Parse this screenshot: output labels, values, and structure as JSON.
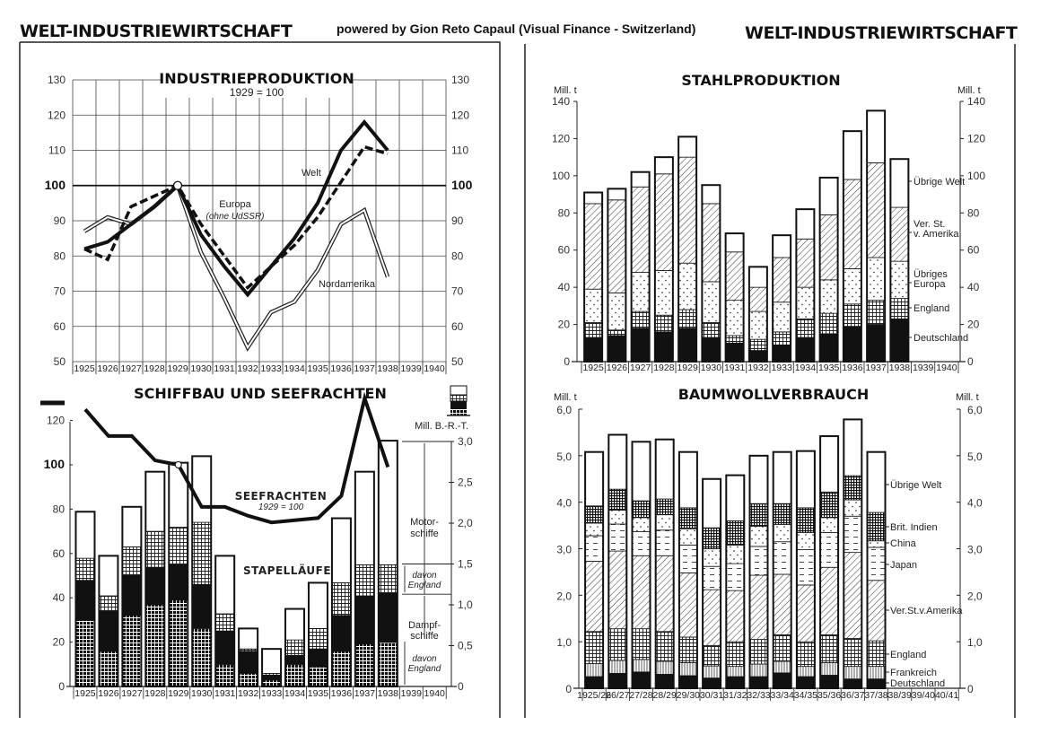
{
  "header": {
    "left_title": "WELT-INDUSTRIEWIRTSCHAFT",
    "credit": "powered by Gion Reto Capaul (Visual Finance - Switzerland)",
    "right_title": "WELT-INDUSTRIEWIRTSCHAFT"
  },
  "chart_data": [
    {
      "type": "line",
      "title": "INDUSTRIEPRODUKTION",
      "subtitle": "1929 = 100",
      "x": [
        1925,
        1926,
        1927,
        1928,
        1929,
        1930,
        1931,
        1932,
        1933,
        1934,
        1935,
        1936,
        1937,
        1938
      ],
      "x_ticks": [
        "1925",
        "1926",
        "1927",
        "1928",
        "1929",
        "1930",
        "1931",
        "1932",
        "1933",
        "1934",
        "1935",
        "1936",
        "1937",
        "1938",
        "1939",
        "1940"
      ],
      "ylim": [
        50,
        130
      ],
      "y_ticks": [
        "50",
        "60",
        "70",
        "80",
        "90",
        "100",
        "110",
        "120",
        "130"
      ],
      "grid": true,
      "series": [
        {
          "name": "Welt",
          "values": [
            82,
            84,
            89,
            94,
            100,
            86,
            77,
            69,
            77,
            85,
            95,
            110,
            118,
            110
          ]
        },
        {
          "name": "Europa",
          "note": "(ohne UdSSR)",
          "values": [
            82,
            79,
            94,
            97,
            100,
            89,
            80,
            71,
            77,
            83,
            91,
            101,
            111,
            109
          ]
        },
        {
          "name": "Nordamerika",
          "values": [
            87,
            91,
            89,
            94,
            100,
            81,
            68,
            54,
            64,
            67,
            76,
            89,
            93,
            74
          ]
        }
      ]
    },
    {
      "type": "bar",
      "stacked": true,
      "values_cumulative": true,
      "title": "STAHLPRODUKTION",
      "ylabel": "Mill. t",
      "ylim": [
        0,
        140
      ],
      "y_ticks": [
        "0",
        "20",
        "40",
        "60",
        "80",
        "100",
        "120",
        "140"
      ],
      "x_ticks": [
        "1925",
        "1926",
        "1927",
        "1928",
        "1929",
        "1930",
        "1931",
        "1932",
        "1933",
        "1934",
        "1935",
        "1936",
        "1937",
        "1938",
        "1939",
        "1940"
      ],
      "series": [
        {
          "name": "Deutschland",
          "label_lines": [
            "Deutschland"
          ]
        },
        {
          "name": "England",
          "label_lines": [
            "England"
          ]
        },
        {
          "name": "Übriges Europa",
          "label_lines": [
            "Übriges",
            "Europa"
          ]
        },
        {
          "name": "Ver. St. v. Amerika",
          "label_lines": [
            "Ver. St.",
            "v. Amerika"
          ]
        },
        {
          "name": "Übrige Welt",
          "label_lines": [
            "Übrige Welt"
          ]
        }
      ],
      "stack_tops": [
        [
          13,
          21,
          39,
          85,
          91
        ],
        [
          14,
          17,
          37,
          87,
          93
        ],
        [
          18,
          27,
          48,
          94,
          102
        ],
        [
          16,
          25,
          49,
          101,
          110
        ],
        [
          18,
          28,
          53,
          110,
          121
        ],
        [
          13,
          21,
          43,
          85,
          95
        ],
        [
          10,
          14,
          33,
          59,
          69
        ],
        [
          6,
          12,
          27,
          40,
          51
        ],
        [
          9,
          16,
          32,
          56,
          68
        ],
        [
          13,
          23,
          40,
          66,
          82
        ],
        [
          15,
          26,
          44,
          79,
          99
        ],
        [
          19,
          31,
          50,
          98,
          124
        ],
        [
          20,
          33,
          56,
          107,
          135
        ],
        [
          23,
          34,
          54,
          83,
          109
        ]
      ]
    },
    {
      "type": "bar",
      "stacked": true,
      "values_cumulative": true,
      "title": "SCHIFFBAU UND SEEFRACHTEN",
      "bar_label": "STAPELLÄUFE",
      "right_ylabel": "Mill. B.-R.-T.",
      "right_ylim": [
        0,
        3.0
      ],
      "right_y_ticks": [
        "0",
        "0,5",
        "1,0",
        "1,5",
        "2,0",
        "2,5",
        "3,0"
      ],
      "left_ylim": [
        0,
        120
      ],
      "left_y_ticks": [
        "0",
        "20",
        "40",
        "60",
        "80",
        "100",
        "120"
      ],
      "x_ticks": [
        "1925",
        "1926",
        "1927",
        "1928",
        "1929",
        "1930",
        "1931",
        "1932",
        "1933",
        "1934",
        "1935",
        "1936",
        "1937",
        "1938",
        "1939",
        "1940"
      ],
      "series": [
        {
          "name": "Dampfschiffe davon England"
        },
        {
          "name": "Dampfschiffe übrige"
        },
        {
          "name": "Motorschiffe davon England"
        },
        {
          "name": "Motorschiffe übrige"
        }
      ],
      "side_labels": [
        {
          "lines": [
            "Motor-",
            "schiffe"
          ],
          "italic": false
        },
        {
          "lines": [
            "davon",
            "England"
          ],
          "italic": true
        },
        {
          "lines": [
            "Dampf-",
            "schiffe"
          ],
          "italic": false
        },
        {
          "lines": [
            "davon",
            "England"
          ],
          "italic": true
        }
      ],
      "stack_tops": [
        [
          0.81,
          1.3,
          1.57,
          2.14
        ],
        [
          0.43,
          0.92,
          1.11,
          1.6
        ],
        [
          0.87,
          1.36,
          1.71,
          2.2
        ],
        [
          1.0,
          1.46,
          1.9,
          2.63
        ],
        [
          1.06,
          1.49,
          1.95,
          2.74
        ],
        [
          0.71,
          1.25,
          2.01,
          2.82
        ],
        [
          0.27,
          0.68,
          0.89,
          1.6
        ],
        [
          0.16,
          0.43,
          0.46,
          0.71
        ],
        [
          0.08,
          0.14,
          0.16,
          0.46
        ],
        [
          0.27,
          0.38,
          0.57,
          0.95
        ],
        [
          0.24,
          0.46,
          0.71,
          1.27
        ],
        [
          0.43,
          0.87,
          1.27,
          2.06
        ],
        [
          0.52,
          1.11,
          1.49,
          2.63
        ],
        [
          0.54,
          1.14,
          1.49,
          3.01
        ]
      ],
      "line_series": {
        "name": "SEEFRACHTEN",
        "subtitle": "1929 = 100",
        "values": [
          125,
          113,
          113,
          102,
          100,
          81,
          81,
          77,
          74,
          75,
          76,
          86,
          130,
          99
        ]
      }
    },
    {
      "type": "bar",
      "stacked": true,
      "values_cumulative": true,
      "title": "BAUMWOLLVERBRAUCH",
      "ylabel": "Mill. t",
      "ylim": [
        0,
        6.0
      ],
      "y_ticks": [
        "0",
        "1,0",
        "2,0",
        "3,0",
        "4,0",
        "5,0",
        "6,0"
      ],
      "x_ticks": [
        "1925/26",
        "26/27",
        "27/28",
        "28/29",
        "29/30",
        "30/31",
        "31/32",
        "32/33",
        "33/34",
        "34/35",
        "35/36",
        "36/37",
        "37/38",
        "38/39",
        "39/40",
        "40/41"
      ],
      "series": [
        {
          "name": "Deutschland"
        },
        {
          "name": "Frankreich"
        },
        {
          "name": "England"
        },
        {
          "name": "Ver.St.v.Amerika"
        },
        {
          "name": "Japan"
        },
        {
          "name": "China"
        },
        {
          "name": "Brit. Indien"
        },
        {
          "name": "Übrige Welt"
        }
      ],
      "stack_tops": [
        [
          0.25,
          0.53,
          1.22,
          2.73,
          3.28,
          3.55,
          3.92,
          5.08
        ],
        [
          0.32,
          0.6,
          1.28,
          2.95,
          3.53,
          3.83,
          4.28,
          5.45
        ],
        [
          0.35,
          0.62,
          1.28,
          2.85,
          3.37,
          3.67,
          4.03,
          5.3
        ],
        [
          0.3,
          0.58,
          1.22,
          2.85,
          3.4,
          3.73,
          4.07,
          5.35
        ],
        [
          0.27,
          0.55,
          1.1,
          2.48,
          3.08,
          3.43,
          3.88,
          5.08
        ],
        [
          0.22,
          0.48,
          0.92,
          2.12,
          2.62,
          3.0,
          3.45,
          4.5
        ],
        [
          0.25,
          0.47,
          1.0,
          2.1,
          2.68,
          3.08,
          3.6,
          4.58
        ],
        [
          0.25,
          0.52,
          1.05,
          2.43,
          3.05,
          3.48,
          3.97,
          5.0
        ],
        [
          0.33,
          0.58,
          1.15,
          2.45,
          3.15,
          3.52,
          3.97,
          5.08
        ],
        [
          0.25,
          0.47,
          1.0,
          2.22,
          2.98,
          3.35,
          3.88,
          5.1
        ],
        [
          0.28,
          0.55,
          1.15,
          2.6,
          3.35,
          3.67,
          4.22,
          5.42
        ],
        [
          0.2,
          0.47,
          1.07,
          2.92,
          3.7,
          4.05,
          4.57,
          5.78
        ],
        [
          0.2,
          0.47,
          1.02,
          2.32,
          3.03,
          3.17,
          3.78,
          5.08
        ]
      ]
    }
  ]
}
